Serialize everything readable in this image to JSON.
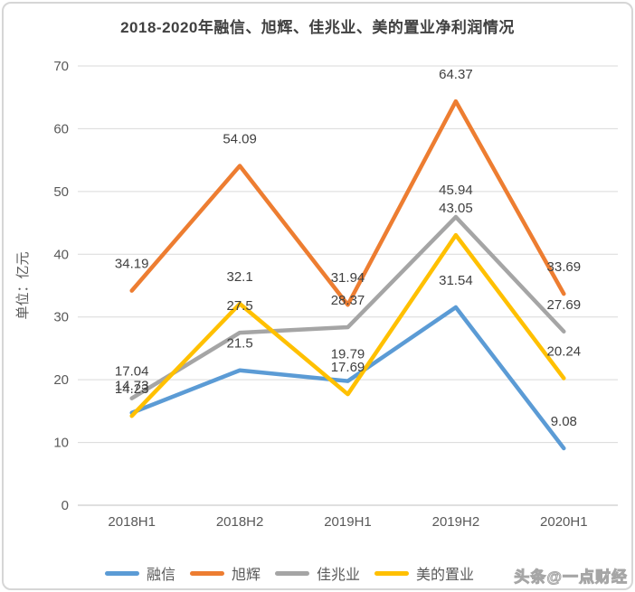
{
  "chart_data": {
    "type": "line",
    "title": "2018-2020年融信、旭辉、佳兆业、美的置业净利润情况",
    "ylabel": "单位：亿元",
    "xlabel": "",
    "categories": [
      "2018H1",
      "2018H2",
      "2019H1",
      "2019H2",
      "2020H1"
    ],
    "series": [
      {
        "name": "融信",
        "color": "#5B9BD5",
        "values": [
          14.73,
          21.5,
          19.79,
          31.54,
          9.08
        ]
      },
      {
        "name": "旭辉",
        "color": "#ED7D31",
        "values": [
          34.19,
          54.09,
          31.94,
          64.37,
          33.69
        ]
      },
      {
        "name": "佳兆业",
        "color": "#A5A5A5",
        "values": [
          17.04,
          27.5,
          28.37,
          45.94,
          27.69
        ]
      },
      {
        "name": "美的置业",
        "color": "#FFC000",
        "values": [
          14.23,
          32.1,
          17.69,
          43.05,
          20.24
        ]
      }
    ],
    "ylim": [
      0,
      70
    ],
    "y_step": 10,
    "grid": true,
    "legend_position": "bottom",
    "data_labels": true
  },
  "watermark": {
    "text": "头条@一点财经"
  },
  "colors": {
    "grid": "#D9D9D9",
    "axis_line": "#BFBFBF",
    "tick_text": "#595959",
    "data_label_text": "#404040",
    "title_text": "#404040"
  }
}
